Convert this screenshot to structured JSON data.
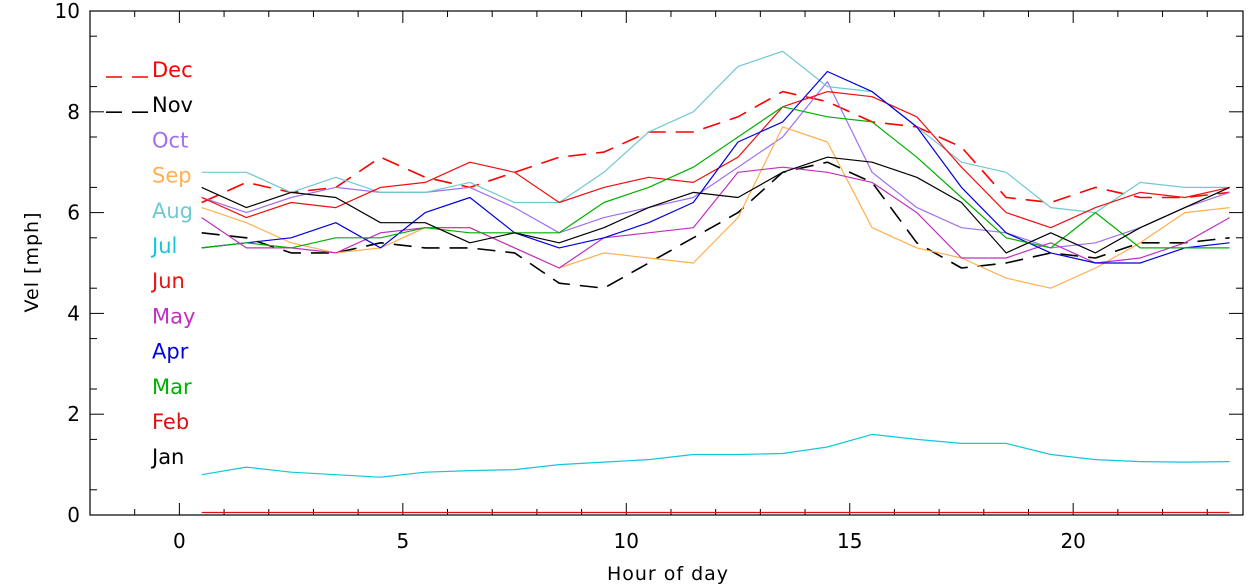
{
  "chart_data": {
    "type": "line",
    "title": "",
    "xlabel": "Hour of day",
    "ylabel": "Vel [mph]",
    "xlim": [
      -2,
      23.8
    ],
    "ylim": [
      0,
      10
    ],
    "xticks": [
      0,
      5,
      10,
      15,
      20
    ],
    "xtick_labels": [
      "0",
      "5",
      "10",
      "15",
      "20"
    ],
    "yticks": [
      0,
      2,
      4,
      6,
      8,
      10
    ],
    "ytick_labels": [
      "0",
      "2",
      "4",
      "6",
      "8",
      "10"
    ],
    "grid": false,
    "legend_position": "top-left",
    "x": [
      0.5,
      1.5,
      2.5,
      3.5,
      4.5,
      5.5,
      6.5,
      7.5,
      8.5,
      9.5,
      10.5,
      11.5,
      12.5,
      13.5,
      14.5,
      15.5,
      16.5,
      17.5,
      18.5,
      19.5,
      20.5,
      21.5,
      22.5,
      23.5
    ],
    "series": [
      {
        "name": "Dec",
        "color": "#ff0000",
        "dash": true,
        "values": [
          6.2,
          6.6,
          6.4,
          6.5,
          7.1,
          6.7,
          6.5,
          6.8,
          7.1,
          7.2,
          7.6,
          7.6,
          7.9,
          8.4,
          8.2,
          7.8,
          7.7,
          7.3,
          6.3,
          6.2,
          6.5,
          6.3,
          6.3,
          6.4
        ]
      },
      {
        "name": "Nov",
        "color": "#000000",
        "dash": true,
        "values": [
          5.6,
          5.5,
          5.2,
          5.2,
          5.4,
          5.3,
          5.3,
          5.2,
          4.6,
          4.5,
          5.0,
          5.5,
          6.0,
          6.8,
          7.0,
          6.6,
          5.4,
          4.9,
          5.0,
          5.2,
          5.1,
          5.4,
          5.4,
          5.5
        ]
      },
      {
        "name": "Oct",
        "color": "#a070f0",
        "dash": false,
        "values": [
          6.3,
          6.0,
          6.3,
          6.5,
          6.4,
          6.4,
          6.5,
          6.1,
          5.6,
          5.9,
          6.1,
          6.3,
          6.9,
          7.5,
          8.6,
          6.8,
          6.1,
          5.7,
          5.6,
          5.3,
          5.4,
          5.7,
          6.1,
          6.4
        ]
      },
      {
        "name": "Sep",
        "color": "#ffb050",
        "dash": false,
        "values": [
          6.1,
          5.8,
          5.4,
          5.2,
          5.3,
          5.7,
          5.7,
          5.3,
          4.9,
          5.2,
          5.1,
          5.0,
          5.9,
          7.7,
          7.4,
          5.7,
          5.3,
          5.1,
          4.7,
          4.5,
          4.9,
          5.4,
          6.0,
          6.1
        ]
      },
      {
        "name": "Aug",
        "color": "#70c8d0",
        "dash": false,
        "values": [
          6.8,
          6.8,
          6.4,
          6.7,
          6.4,
          6.4,
          6.6,
          6.2,
          6.2,
          6.8,
          7.6,
          8.0,
          8.9,
          9.2,
          8.5,
          8.4,
          7.7,
          7.0,
          6.8,
          6.1,
          6.0,
          6.6,
          6.5,
          6.5
        ]
      },
      {
        "name": "Jul",
        "color": "#10c8d8",
        "dash": false,
        "values": [
          0.8,
          0.95,
          0.85,
          0.8,
          0.75,
          0.85,
          0.88,
          0.9,
          1.0,
          1.05,
          1.1,
          1.2,
          1.2,
          1.22,
          1.35,
          1.6,
          1.5,
          1.42,
          1.42,
          1.2,
          1.1,
          1.06,
          1.05,
          1.06
        ]
      },
      {
        "name": "Jun",
        "color": "#f01010",
        "dash": false,
        "values": [
          6.3,
          5.9,
          6.2,
          6.1,
          6.5,
          6.6,
          7.0,
          6.8,
          6.2,
          6.5,
          6.7,
          6.6,
          7.1,
          8.1,
          8.4,
          8.3,
          7.9,
          6.9,
          6.0,
          5.7,
          6.1,
          6.4,
          6.3,
          6.5
        ]
      },
      {
        "name": "May",
        "color": "#c030c0",
        "dash": false,
        "values": [
          5.9,
          5.3,
          5.3,
          5.2,
          5.6,
          5.7,
          5.7,
          5.3,
          4.9,
          5.5,
          5.6,
          5.7,
          6.8,
          6.9,
          6.8,
          6.6,
          6.0,
          5.1,
          5.1,
          5.4,
          5.0,
          5.1,
          5.4,
          5.9
        ]
      },
      {
        "name": "Apr",
        "color": "#0000e0",
        "dash": false,
        "values": [
          5.3,
          5.4,
          5.5,
          5.8,
          5.3,
          6.0,
          6.3,
          5.6,
          5.3,
          5.5,
          5.8,
          6.2,
          7.4,
          7.8,
          8.8,
          8.4,
          7.7,
          6.5,
          5.6,
          5.2,
          5.0,
          5.0,
          5.3,
          5.4
        ]
      },
      {
        "name": "Mar",
        "color": "#00b000",
        "dash": false,
        "values": [
          5.3,
          5.4,
          5.3,
          5.5,
          5.5,
          5.7,
          5.6,
          5.6,
          5.6,
          6.2,
          6.5,
          6.9,
          7.5,
          8.1,
          7.9,
          7.8,
          7.1,
          6.3,
          5.5,
          5.3,
          6.0,
          5.3,
          5.3,
          5.3
        ]
      },
      {
        "name": "Feb",
        "color": "#e01010",
        "dash": false,
        "values": [
          0.05,
          0.05,
          0.05,
          0.05,
          0.05,
          0.05,
          0.05,
          0.05,
          0.05,
          0.05,
          0.05,
          0.05,
          0.05,
          0.05,
          0.05,
          0.05,
          0.05,
          0.05,
          0.05,
          0.05,
          0.05,
          0.05,
          0.05,
          0.05
        ]
      },
      {
        "name": "Jan",
        "color": "#000000",
        "dash": false,
        "values": [
          6.5,
          6.1,
          6.4,
          6.3,
          5.8,
          5.8,
          5.4,
          5.6,
          5.4,
          5.7,
          6.1,
          6.4,
          6.3,
          6.8,
          7.1,
          7.0,
          6.7,
          6.2,
          5.2,
          5.6,
          5.2,
          5.7,
          6.1,
          6.5
        ]
      }
    ]
  }
}
